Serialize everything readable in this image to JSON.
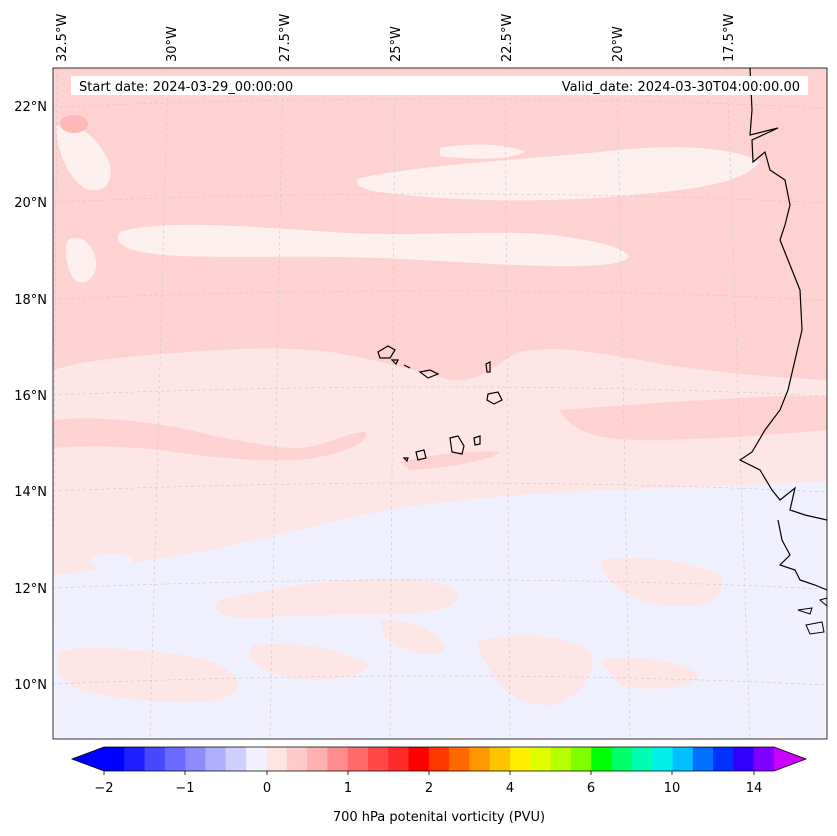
{
  "map": {
    "start_label": "Start date: 2024-03-29_00:00:00",
    "valid_label": "Valid_date: 2024-03-30T04:00:00.00",
    "lon_labels": [
      "32.5°W",
      "30°W",
      "27.5°W",
      "25°W",
      "22.5°W",
      "20°W",
      "17.5°W"
    ],
    "lat_labels": [
      "22°N",
      "20°N",
      "18°N",
      "16°N",
      "14°N",
      "12°N",
      "10°N"
    ],
    "colorbar": {
      "label": "700 hPa potenital vorticity (PVU)",
      "tick_labels": [
        "−2",
        "−1",
        "0",
        "1",
        "2",
        "4",
        "6",
        "10",
        "14"
      ],
      "colors": [
        "#0000ff",
        "#2020ff",
        "#4848ff",
        "#6a6aff",
        "#8c8cff",
        "#b0b0ff",
        "#d0d0ff",
        "#f0f0ff",
        "#ffe4e4",
        "#ffcaca",
        "#ffb0b0",
        "#ff8c8c",
        "#ff6a6a",
        "#ff4848",
        "#ff2a2a",
        "#ff0000",
        "#ff3800",
        "#ff6a00",
        "#ff9800",
        "#ffc400",
        "#ffee00",
        "#e0ff00",
        "#b4ff00",
        "#80ff00",
        "#00ff00",
        "#00ff68",
        "#00ffb0",
        "#00f0e8",
        "#00c0ff",
        "#0070ff",
        "#0030ff",
        "#3000ff",
        "#8000ff"
      ],
      "extend_low_color": "#0000ff",
      "extend_high_color": "#cc00ff"
    },
    "fill_colors": {
      "base": "#ffe6e6",
      "band": "#ffd2d2",
      "strong": "#ffb8b8",
      "light": "#fff0f0",
      "negative": "#f0f0ff"
    }
  }
}
